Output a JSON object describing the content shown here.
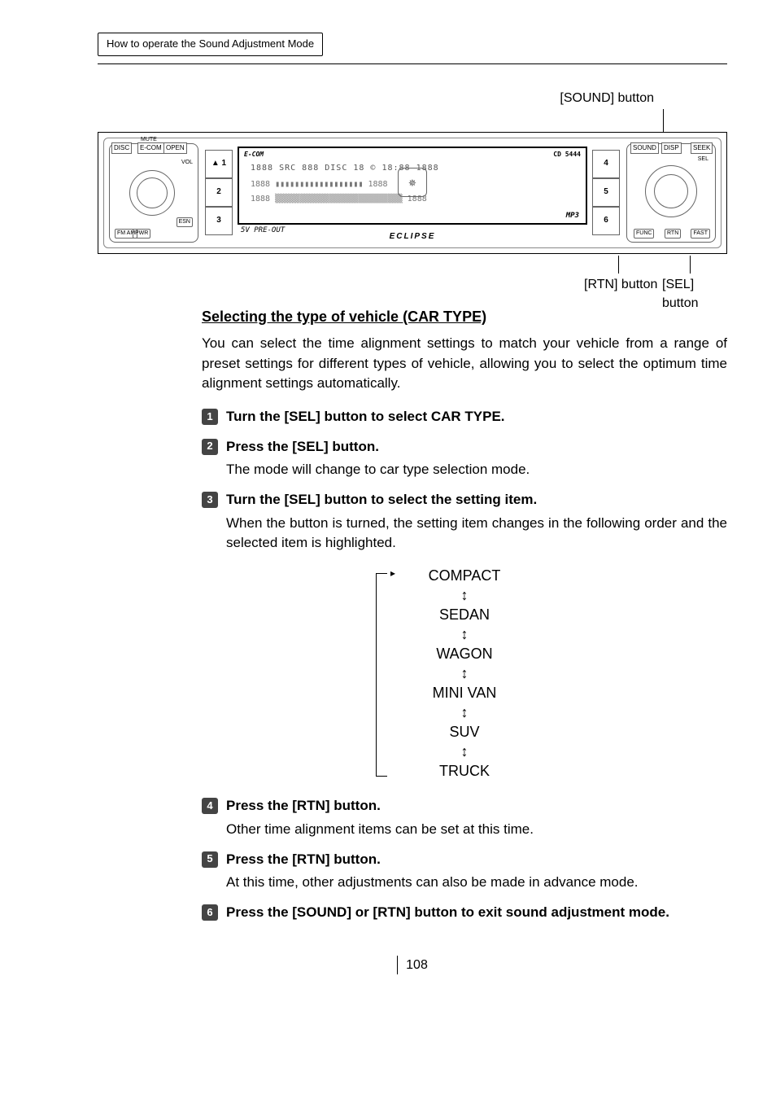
{
  "header": {
    "breadcrumb": "How to operate the Sound Adjustment Mode"
  },
  "callouts": {
    "top": "[SOUND] button",
    "bottom_left": "[RTN] button",
    "bottom_right": "[SEL] button"
  },
  "device": {
    "left_panel": {
      "mute": "MUTE",
      "tabs": [
        "DISC",
        "E-COM",
        "OPEN"
      ],
      "vol": "VOL",
      "fm_am": "FM\nAM",
      "pwr": "PWR",
      "esn": "ESN"
    },
    "presets_left": [
      "▲ 1",
      "2",
      "3"
    ],
    "presets_right": [
      "4",
      "5",
      "6"
    ],
    "lcd": {
      "brand": "E-COM",
      "model": "CD 5444",
      "seg1": "1888  SRC 888 DISC 18 © 18:88           1888",
      "indicators": "ADVANCE DSP EQ POSITION CHECK",
      "seg2": "1888  ▮▮▮▮▮▮▮▮▮▮▮▮▮▮▮▮▮▮           1888",
      "seg3": "1888  ▒▒▒▒▒▒▒▒▒▒▒▒▒▒▒▒▒▒▒▒▒▒▒▒▒▒   1888",
      "mp3": "MP3",
      "five_v": "5V PRE-OUT",
      "eclipse": "ECLIPSE"
    },
    "right_panel": {
      "tabs": [
        "SOUND",
        "DISP",
        "SEEK"
      ],
      "sel": "SEL",
      "bottom": [
        "FUNC",
        "RTN",
        "FAST"
      ]
    }
  },
  "section": {
    "title": "Selecting the type of vehicle (CAR TYPE)",
    "intro": "You can select the time alignment settings to match your vehicle from a range of preset settings for different types of vehicle, allowing you to select the optimum time alignment settings automatically."
  },
  "steps": [
    {
      "n": "1",
      "head": "Turn the [SEL] button to select CAR TYPE.",
      "body": ""
    },
    {
      "n": "2",
      "head": "Press the [SEL] button.",
      "body": "The mode will change to car type selection mode."
    },
    {
      "n": "3",
      "head": "Turn the [SEL] button to select the setting item.",
      "body": "When the button is turned, the setting item changes in the following order and the selected item is highlighted."
    },
    {
      "n": "4",
      "head": "Press the [RTN] button.",
      "body": "Other time alignment items can be set at this time."
    },
    {
      "n": "5",
      "head": "Press the [RTN] button.",
      "body": "At this time, other adjustments can also be made in advance mode."
    },
    {
      "n": "6",
      "head": "Press the [SOUND] or [RTN] button to exit sound adjustment mode.",
      "body": ""
    }
  ],
  "vehicle_types": [
    "COMPACT",
    "SEDAN",
    "WAGON",
    "MINI VAN",
    "SUV",
    "TRUCK"
  ],
  "page_number": "108"
}
